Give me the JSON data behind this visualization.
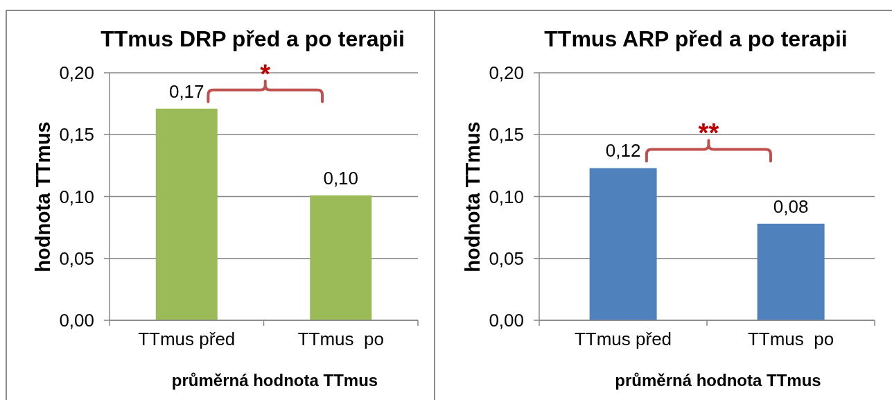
{
  "chart_data": [
    {
      "type": "bar",
      "title": "TTmus DRP před a po terapii",
      "xlabel": "průměrná hodnota TTmus",
      "ylabel": "hodnota TTmus",
      "categories": [
        "TTmus před",
        "TTmus  po"
      ],
      "values": [
        0.171,
        0.101
      ],
      "color": "#9bbb59",
      "value_labels": [
        "0,17",
        "0,10"
      ],
      "ylim": [
        0,
        0.2
      ],
      "yticks": [
        {
          "value": 0,
          "label": "0,00"
        },
        {
          "value": 0.05,
          "label": "0,05"
        },
        {
          "value": 0.1,
          "label": "0,10"
        },
        {
          "value": 0.15,
          "label": "0,15"
        },
        {
          "value": 0.2,
          "label": "0,20"
        }
      ],
      "grid": "y",
      "annotations": [
        "*"
      ]
    },
    {
      "type": "bar",
      "title": "TTmus ARP před a po terapii",
      "xlabel": "průměrná hodnota TTmus",
      "ylabel": "hodnota TTmus",
      "categories": [
        "TTmus před",
        "TTmus  po"
      ],
      "values": [
        0.123,
        0.078
      ],
      "color": "#4f81bd",
      "value_labels": [
        "0,12",
        "0,08"
      ],
      "ylim": [
        0,
        0.2
      ],
      "yticks": [
        {
          "value": 0,
          "label": "0,00"
        },
        {
          "value": 0.05,
          "label": "0,05"
        },
        {
          "value": 0.1,
          "label": "0,10"
        },
        {
          "value": 0.15,
          "label": "0,15"
        },
        {
          "value": 0.2,
          "label": "0,20"
        }
      ],
      "grid": "y",
      "annotations": [
        "**"
      ]
    }
  ]
}
